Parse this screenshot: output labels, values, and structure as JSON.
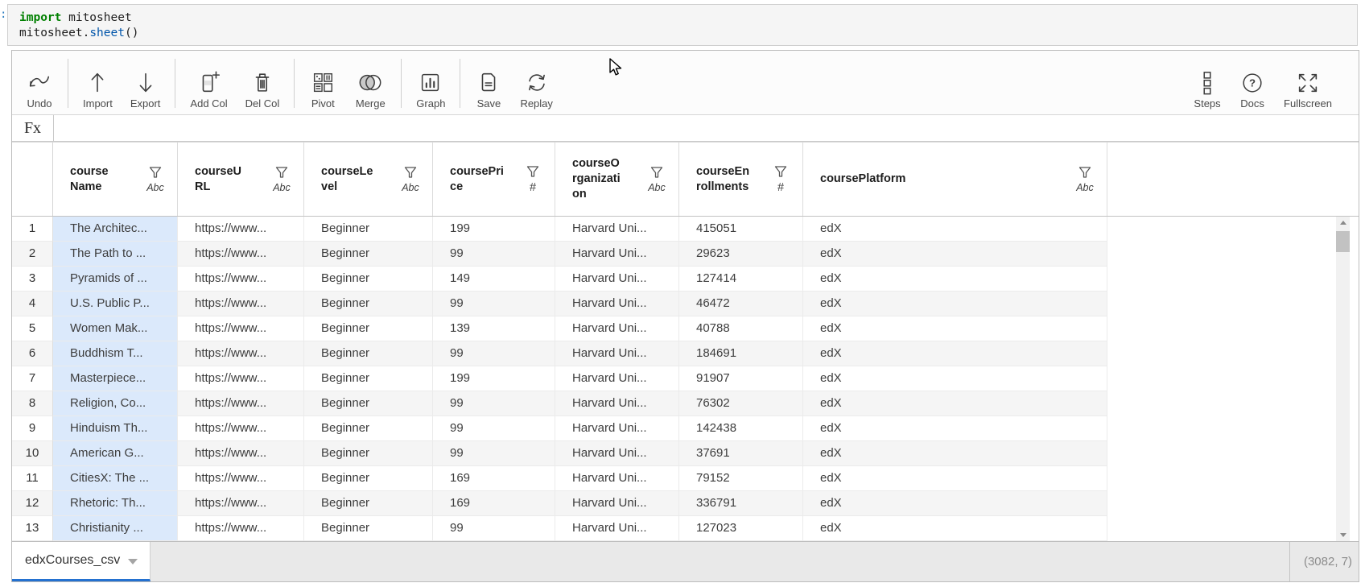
{
  "colors": {
    "accent_blue": "#2471d0",
    "selected_column_bg": "#dbe9fb",
    "keyword_green": "#008000",
    "property_blue": "#0055aa",
    "alt_row_bg": "#f5f5f5"
  },
  "notebook_cell": {
    "prompt_fragment": ":",
    "code": {
      "kw": "import",
      "arg": " mitosheet",
      "obj": "mitosheet.",
      "fn": "sheet",
      "paren": "()"
    }
  },
  "toolbar": {
    "items": [
      {
        "label": "Undo",
        "icon": "undo-icon"
      },
      {
        "label": "Import",
        "icon": "import-icon"
      },
      {
        "label": "Export",
        "icon": "export-icon"
      },
      {
        "label": "Add Col",
        "icon": "add-column-icon"
      },
      {
        "label": "Del Col",
        "icon": "delete-column-icon"
      },
      {
        "label": "Pivot",
        "icon": "pivot-icon"
      },
      {
        "label": "Merge",
        "icon": "merge-icon"
      },
      {
        "label": "Graph",
        "icon": "graph-icon"
      },
      {
        "label": "Save",
        "icon": "save-icon"
      },
      {
        "label": "Replay",
        "icon": "replay-icon"
      }
    ],
    "right_items": [
      {
        "label": "Steps",
        "icon": "steps-icon"
      },
      {
        "label": "Docs",
        "icon": "docs-icon"
      },
      {
        "label": "Fullscreen",
        "icon": "fullscreen-icon"
      }
    ]
  },
  "formula_bar": {
    "fx_label": "Fx",
    "value": ""
  },
  "grid": {
    "columns": [
      {
        "name": "courseName",
        "type": "Abc"
      },
      {
        "name": "courseURL",
        "type": "Abc"
      },
      {
        "name": "courseLevel",
        "type": "Abc"
      },
      {
        "name": "coursePrice",
        "type": "#"
      },
      {
        "name": "courseOrganization",
        "type": "Abc"
      },
      {
        "name": "courseEnrollments",
        "type": "#"
      },
      {
        "name": "coursePlatform",
        "type": "Abc"
      }
    ],
    "rows": [
      {
        "idx": "1",
        "courseName": "The Architec...",
        "courseURL": "https://www...",
        "courseLevel": "Beginner",
        "coursePrice": "199",
        "courseOrganization": "Harvard Uni...",
        "courseEnrollments": "415051",
        "coursePlatform": "edX"
      },
      {
        "idx": "2",
        "courseName": "The Path to ...",
        "courseURL": "https://www...",
        "courseLevel": "Beginner",
        "coursePrice": "99",
        "courseOrganization": "Harvard Uni...",
        "courseEnrollments": "29623",
        "coursePlatform": "edX"
      },
      {
        "idx": "3",
        "courseName": "Pyramids of ...",
        "courseURL": "https://www...",
        "courseLevel": "Beginner",
        "coursePrice": "149",
        "courseOrganization": "Harvard Uni...",
        "courseEnrollments": "127414",
        "coursePlatform": "edX"
      },
      {
        "idx": "4",
        "courseName": "U.S. Public P...",
        "courseURL": "https://www...",
        "courseLevel": "Beginner",
        "coursePrice": "99",
        "courseOrganization": "Harvard Uni...",
        "courseEnrollments": "46472",
        "coursePlatform": "edX"
      },
      {
        "idx": "5",
        "courseName": "Women Mak...",
        "courseURL": "https://www...",
        "courseLevel": "Beginner",
        "coursePrice": "139",
        "courseOrganization": "Harvard Uni...",
        "courseEnrollments": "40788",
        "coursePlatform": "edX"
      },
      {
        "idx": "6",
        "courseName": "Buddhism T...",
        "courseURL": "https://www...",
        "courseLevel": "Beginner",
        "coursePrice": "99",
        "courseOrganization": "Harvard Uni...",
        "courseEnrollments": "184691",
        "coursePlatform": "edX"
      },
      {
        "idx": "7",
        "courseName": "Masterpiece...",
        "courseURL": "https://www...",
        "courseLevel": "Beginner",
        "coursePrice": "199",
        "courseOrganization": "Harvard Uni...",
        "courseEnrollments": "91907",
        "coursePlatform": "edX"
      },
      {
        "idx": "8",
        "courseName": "Religion, Co...",
        "courseURL": "https://www...",
        "courseLevel": "Beginner",
        "coursePrice": "99",
        "courseOrganization": "Harvard Uni...",
        "courseEnrollments": "76302",
        "coursePlatform": "edX"
      },
      {
        "idx": "9",
        "courseName": "Hinduism Th...",
        "courseURL": "https://www...",
        "courseLevel": "Beginner",
        "coursePrice": "99",
        "courseOrganization": "Harvard Uni...",
        "courseEnrollments": "142438",
        "coursePlatform": "edX"
      },
      {
        "idx": "10",
        "courseName": "American G...",
        "courseURL": "https://www...",
        "courseLevel": "Beginner",
        "coursePrice": "99",
        "courseOrganization": "Harvard Uni...",
        "courseEnrollments": "37691",
        "coursePlatform": "edX"
      },
      {
        "idx": "11",
        "courseName": "CitiesX: The ...",
        "courseURL": "https://www...",
        "courseLevel": "Beginner",
        "coursePrice": "169",
        "courseOrganization": "Harvard Uni...",
        "courseEnrollments": "79152",
        "coursePlatform": "edX"
      },
      {
        "idx": "12",
        "courseName": "Rhetoric: Th...",
        "courseURL": "https://www...",
        "courseLevel": "Beginner",
        "coursePrice": "169",
        "courseOrganization": "Harvard Uni...",
        "courseEnrollments": "336791",
        "coursePlatform": "edX"
      },
      {
        "idx": "13",
        "courseName": "Christianity ...",
        "courseURL": "https://www...",
        "courseLevel": "Beginner",
        "coursePrice": "99",
        "courseOrganization": "Harvard Uni...",
        "courseEnrollments": "127023",
        "coursePlatform": "edX"
      }
    ]
  },
  "sheet_bar": {
    "tab_label": "edxCourses_csv",
    "dimensions": "(3082, 7)"
  },
  "icons": {
    "tab-dropdown": "▼",
    "scroll-up": "▲",
    "scroll-down": "▼",
    "docs-glyph": "?",
    "filter": "funnel"
  }
}
